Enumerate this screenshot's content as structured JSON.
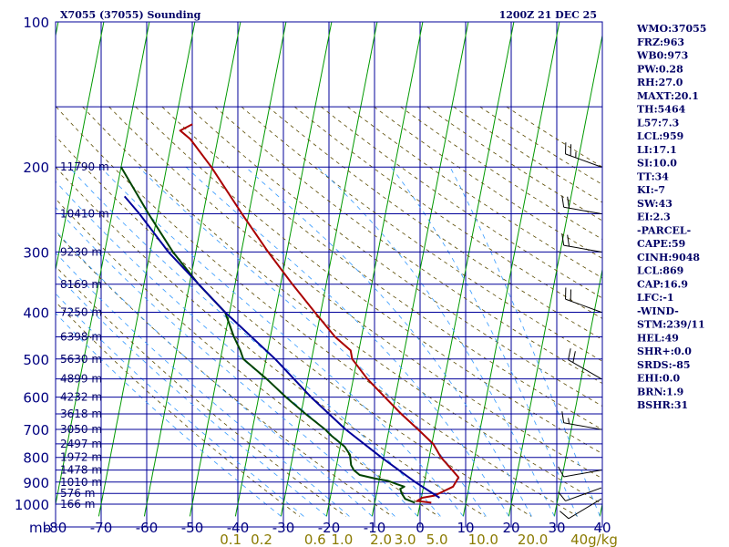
{
  "chart_data": {
    "type": "line",
    "title": "X7055 (37055) Sounding",
    "valid_time": "1200Z 21 DEC 25",
    "axis": {
      "pressure_ticks": [
        "100",
        "200",
        "300",
        "400",
        "500",
        "600",
        "700",
        "800",
        "900",
        "1000"
      ],
      "pressure_unit": "mb",
      "temperature_ticks": [
        "-80",
        "-70",
        "-60",
        "-50",
        "-40",
        "-30",
        "-20",
        "-10",
        "0",
        "10",
        "20",
        "30",
        "40"
      ],
      "mixing_ratio_ticks": [
        "0.1",
        "0.2",
        "0.6",
        "1.0",
        "2.0",
        "3.0",
        "5.0",
        "10.0",
        "20.0"
      ],
      "mixing_ratio_unit": "g/kg",
      "temp_range": [
        -80,
        40
      ],
      "pressure_range": [
        100,
        1000
      ]
    },
    "height_labels": [
      {
        "p": 200,
        "label": "11790 m"
      },
      {
        "p": 250,
        "label": "10410 m"
      },
      {
        "p": 300,
        "label": "9230 m"
      },
      {
        "p": 350,
        "label": "8169 m"
      },
      {
        "p": 400,
        "label": "7250 m"
      },
      {
        "p": 450,
        "label": "6398 m"
      },
      {
        "p": 500,
        "label": "5630 m"
      },
      {
        "p": 550,
        "label": "4899 m"
      },
      {
        "p": 600,
        "label": "4232 m"
      },
      {
        "p": 650,
        "label": "3618 m"
      },
      {
        "p": 700,
        "label": "3050 m"
      },
      {
        "p": 750,
        "label": "2497 m"
      },
      {
        "p": 800,
        "label": "1972 m"
      },
      {
        "p": 850,
        "label": "1478 m"
      },
      {
        "p": 900,
        "label": "1010 m"
      },
      {
        "p": 950,
        "label": "576 m"
      },
      {
        "p": 1000,
        "label": "166 m"
      }
    ],
    "series": [
      {
        "name": "Temperature",
        "color": "#aa0000",
        "points": [
          {
            "p": 993,
            "t": 2.4
          },
          {
            "p": 985,
            "t": -0.8
          },
          {
            "p": 970,
            "t": 0.2
          },
          {
            "p": 960,
            "t": 2.8
          },
          {
            "p": 920,
            "t": 6.5
          },
          {
            "p": 880,
            "t": 7.3
          },
          {
            "p": 850,
            "t": 5.6
          },
          {
            "p": 800,
            "t": 2.6
          },
          {
            "p": 750,
            "t": 0.3
          },
          {
            "p": 700,
            "t": -3.6
          },
          {
            "p": 650,
            "t": -8.0
          },
          {
            "p": 600,
            "t": -12.3
          },
          {
            "p": 550,
            "t": -16.9
          },
          {
            "p": 500,
            "t": -21.1
          },
          {
            "p": 480,
            "t": -21.8
          },
          {
            "p": 450,
            "t": -25.8
          },
          {
            "p": 400,
            "t": -31.3
          },
          {
            "p": 350,
            "t": -37.4
          },
          {
            "p": 300,
            "t": -44.1
          },
          {
            "p": 250,
            "t": -51.5
          },
          {
            "p": 200,
            "t": -60.2
          },
          {
            "p": 175,
            "t": -66.0
          },
          {
            "p": 168,
            "t": -68.6
          },
          {
            "p": 163,
            "t": -66.2
          }
        ]
      },
      {
        "name": "Dewpoint",
        "color": "#004400",
        "points": [
          {
            "p": 993,
            "t": -1.2
          },
          {
            "p": 975,
            "t": -3.5
          },
          {
            "p": 950,
            "t": -4.5
          },
          {
            "p": 930,
            "t": -5.0
          },
          {
            "p": 920,
            "t": -4.2
          },
          {
            "p": 910,
            "t": -5.8
          },
          {
            "p": 895,
            "t": -8.0
          },
          {
            "p": 885,
            "t": -11.0
          },
          {
            "p": 870,
            "t": -14.5
          },
          {
            "p": 850,
            "t": -16.0
          },
          {
            "p": 830,
            "t": -16.8
          },
          {
            "p": 790,
            "t": -17.5
          },
          {
            "p": 760,
            "t": -19.0
          },
          {
            "p": 720,
            "t": -22.5
          },
          {
            "p": 700,
            "t": -24.0
          },
          {
            "p": 650,
            "t": -29.0
          },
          {
            "p": 600,
            "t": -34.0
          },
          {
            "p": 550,
            "t": -39.0
          },
          {
            "p": 500,
            "t": -45.0
          },
          {
            "p": 480,
            "t": -46.0
          },
          {
            "p": 450,
            "t": -48.0
          },
          {
            "p": 400,
            "t": -51.0
          },
          {
            "p": 350,
            "t": -58.0
          },
          {
            "p": 300,
            "t": -65.0
          },
          {
            "p": 250,
            "t": -72.0
          },
          {
            "p": 200,
            "t": -80.0
          }
        ]
      },
      {
        "name": "Parcel",
        "color": "#000099",
        "points": [
          {
            "p": 970,
            "t": 4.0
          },
          {
            "p": 900,
            "t": -2.0
          },
          {
            "p": 800,
            "t": -10.5
          },
          {
            "p": 700,
            "t": -19.5
          },
          {
            "p": 600,
            "t": -28.5
          },
          {
            "p": 500,
            "t": -38.0
          },
          {
            "p": 400,
            "t": -51.0
          },
          {
            "p": 300,
            "t": -66.0
          },
          {
            "p": 250,
            "t": -74.0
          },
          {
            "p": 230,
            "t": -78.0
          }
        ]
      }
    ],
    "winds": [
      {
        "p": 975,
        "dir": 239,
        "spd": 10
      },
      {
        "p": 925,
        "dir": 250,
        "spd": 10
      },
      {
        "p": 850,
        "dir": 260,
        "spd": 10
      },
      {
        "p": 700,
        "dir": 280,
        "spd": 15
      },
      {
        "p": 550,
        "dir": 300,
        "spd": 20
      },
      {
        "p": 400,
        "dir": 290,
        "spd": 20
      },
      {
        "p": 300,
        "dir": 280,
        "spd": 20
      },
      {
        "p": 250,
        "dir": 280,
        "spd": 20
      },
      {
        "p": 200,
        "dir": 290,
        "spd": 25
      }
    ]
  },
  "indices": [
    "WMO:37055",
    "FRZ:963",
    "WB0:973",
    "PW:0.28",
    "RH:27.0",
    "MAXT:20.1",
    "TH:5464",
    "L57:7.3",
    "LCL:959",
    "LI:17.1",
    "SI:10.0",
    "TT:34",
    "KI:-7",
    "SW:43",
    "EI:2.3",
    "-PARCEL-",
    "CAPE:59",
    "CINH:9048",
    "LCL:869",
    "CAP:16.9",
    "LFC:-1",
    "-WIND-",
    "STM:239/11",
    "HEL:49",
    "SHR+:0.0",
    "SRDS:-85",
    "EHI:0.0",
    "BRN:1.9",
    "BSHR:31"
  ],
  "colors": {
    "isobar": "#000099",
    "isotherm": "#009900",
    "dry_adiabat": "#5a4a00",
    "moist_adiabat": "#3399ff",
    "mixing_ratio": "#8a7a00"
  }
}
